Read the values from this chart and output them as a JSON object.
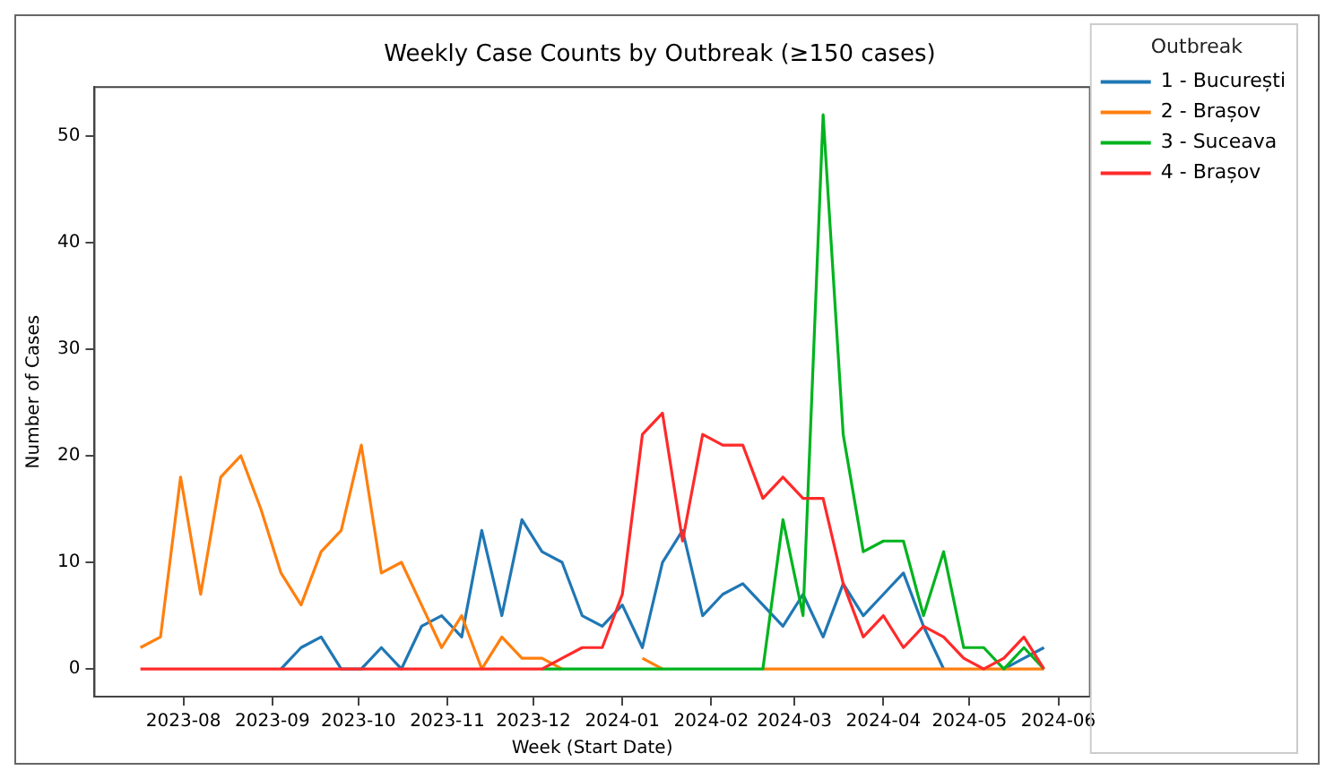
{
  "chart_data": {
    "type": "line",
    "title": "Weekly Case Counts by Outbreak (≥150 cases)",
    "xlabel": "Week (Start Date)",
    "ylabel": "Number of Cases",
    "legend_title": "Outbreak",
    "legend": "top right",
    "grid": false,
    "marker": "none",
    "line_style": "solid",
    "x": [
      "2023-07-17",
      "2023-07-24",
      "2023-07-31",
      "2023-08-07",
      "2023-08-14",
      "2023-08-21",
      "2023-08-28",
      "2023-09-04",
      "2023-09-11",
      "2023-09-18",
      "2023-09-25",
      "2023-10-02",
      "2023-10-09",
      "2023-10-16",
      "2023-10-23",
      "2023-10-30",
      "2023-11-06",
      "2023-11-13",
      "2023-11-20",
      "2023-11-27",
      "2023-12-04",
      "2023-12-11",
      "2023-12-18",
      "2023-12-25",
      "2024-01-01",
      "2024-01-08",
      "2024-01-15",
      "2024-01-22",
      "2024-01-29",
      "2024-02-05",
      "2024-02-12",
      "2024-02-19",
      "2024-02-26",
      "2024-03-04",
      "2024-03-11",
      "2024-03-18",
      "2024-03-25",
      "2024-04-01",
      "2024-04-08",
      "2024-04-15",
      "2024-04-22",
      "2024-04-29",
      "2024-05-06",
      "2024-05-13",
      "2024-05-20",
      "2024-05-27"
    ],
    "xlim": [
      "2023-07-01",
      "2024-06-12"
    ],
    "xticks": [
      "2023-08",
      "2023-09",
      "2023-10",
      "2023-11",
      "2023-12",
      "2024-01",
      "2024-02",
      "2024-03",
      "2024-04",
      "2024-05",
      "2024-06"
    ],
    "ylim": [
      -2.6,
      54.6
    ],
    "yticks": [
      0,
      10,
      20,
      30,
      40,
      50
    ],
    "series": [
      {
        "name": "1 - București",
        "color": "#1f77b4",
        "values": [
          null,
          null,
          null,
          null,
          null,
          null,
          null,
          0,
          2,
          3,
          0,
          0,
          2,
          0,
          4,
          5,
          3,
          13,
          5,
          14,
          11,
          10,
          5,
          4,
          6,
          2,
          10,
          13,
          5,
          7,
          8,
          6,
          4,
          7,
          3,
          8,
          5,
          7,
          9,
          4,
          0,
          null,
          null,
          0,
          1,
          2
        ]
      },
      {
        "name": "2 - Brașov",
        "color": "#ff7f0e",
        "values": [
          2,
          3,
          18,
          7,
          18,
          20,
          15,
          9,
          6,
          11,
          13,
          21,
          9,
          10,
          6,
          2,
          5,
          0,
          3,
          1,
          1,
          0,
          null,
          null,
          null,
          1,
          0,
          null,
          null,
          null,
          null,
          0,
          0,
          0,
          0,
          0,
          0,
          0,
          0,
          0,
          0,
          0,
          0,
          0,
          0,
          0
        ]
      },
      {
        "name": "3 - Suceava",
        "color": "#00b31e",
        "values": [
          null,
          null,
          null,
          null,
          null,
          null,
          null,
          null,
          null,
          null,
          null,
          null,
          null,
          null,
          null,
          null,
          null,
          null,
          null,
          null,
          0,
          0,
          0,
          0,
          0,
          0,
          0,
          0,
          0,
          0,
          0,
          0,
          14,
          5,
          52,
          22,
          11,
          12,
          12,
          5,
          11,
          2,
          2,
          0,
          2,
          0
        ]
      },
      {
        "name": "4 - Brașov",
        "color": "#ff2a2a",
        "values": [
          0,
          0,
          0,
          0,
          0,
          0,
          0,
          0,
          0,
          0,
          0,
          0,
          0,
          0,
          0,
          0,
          0,
          0,
          0,
          0,
          0,
          1,
          2,
          2,
          7,
          22,
          24,
          12,
          22,
          21,
          21,
          16,
          18,
          16,
          16,
          8,
          3,
          5,
          2,
          4,
          3,
          1,
          0,
          1,
          3,
          0
        ]
      }
    ]
  }
}
